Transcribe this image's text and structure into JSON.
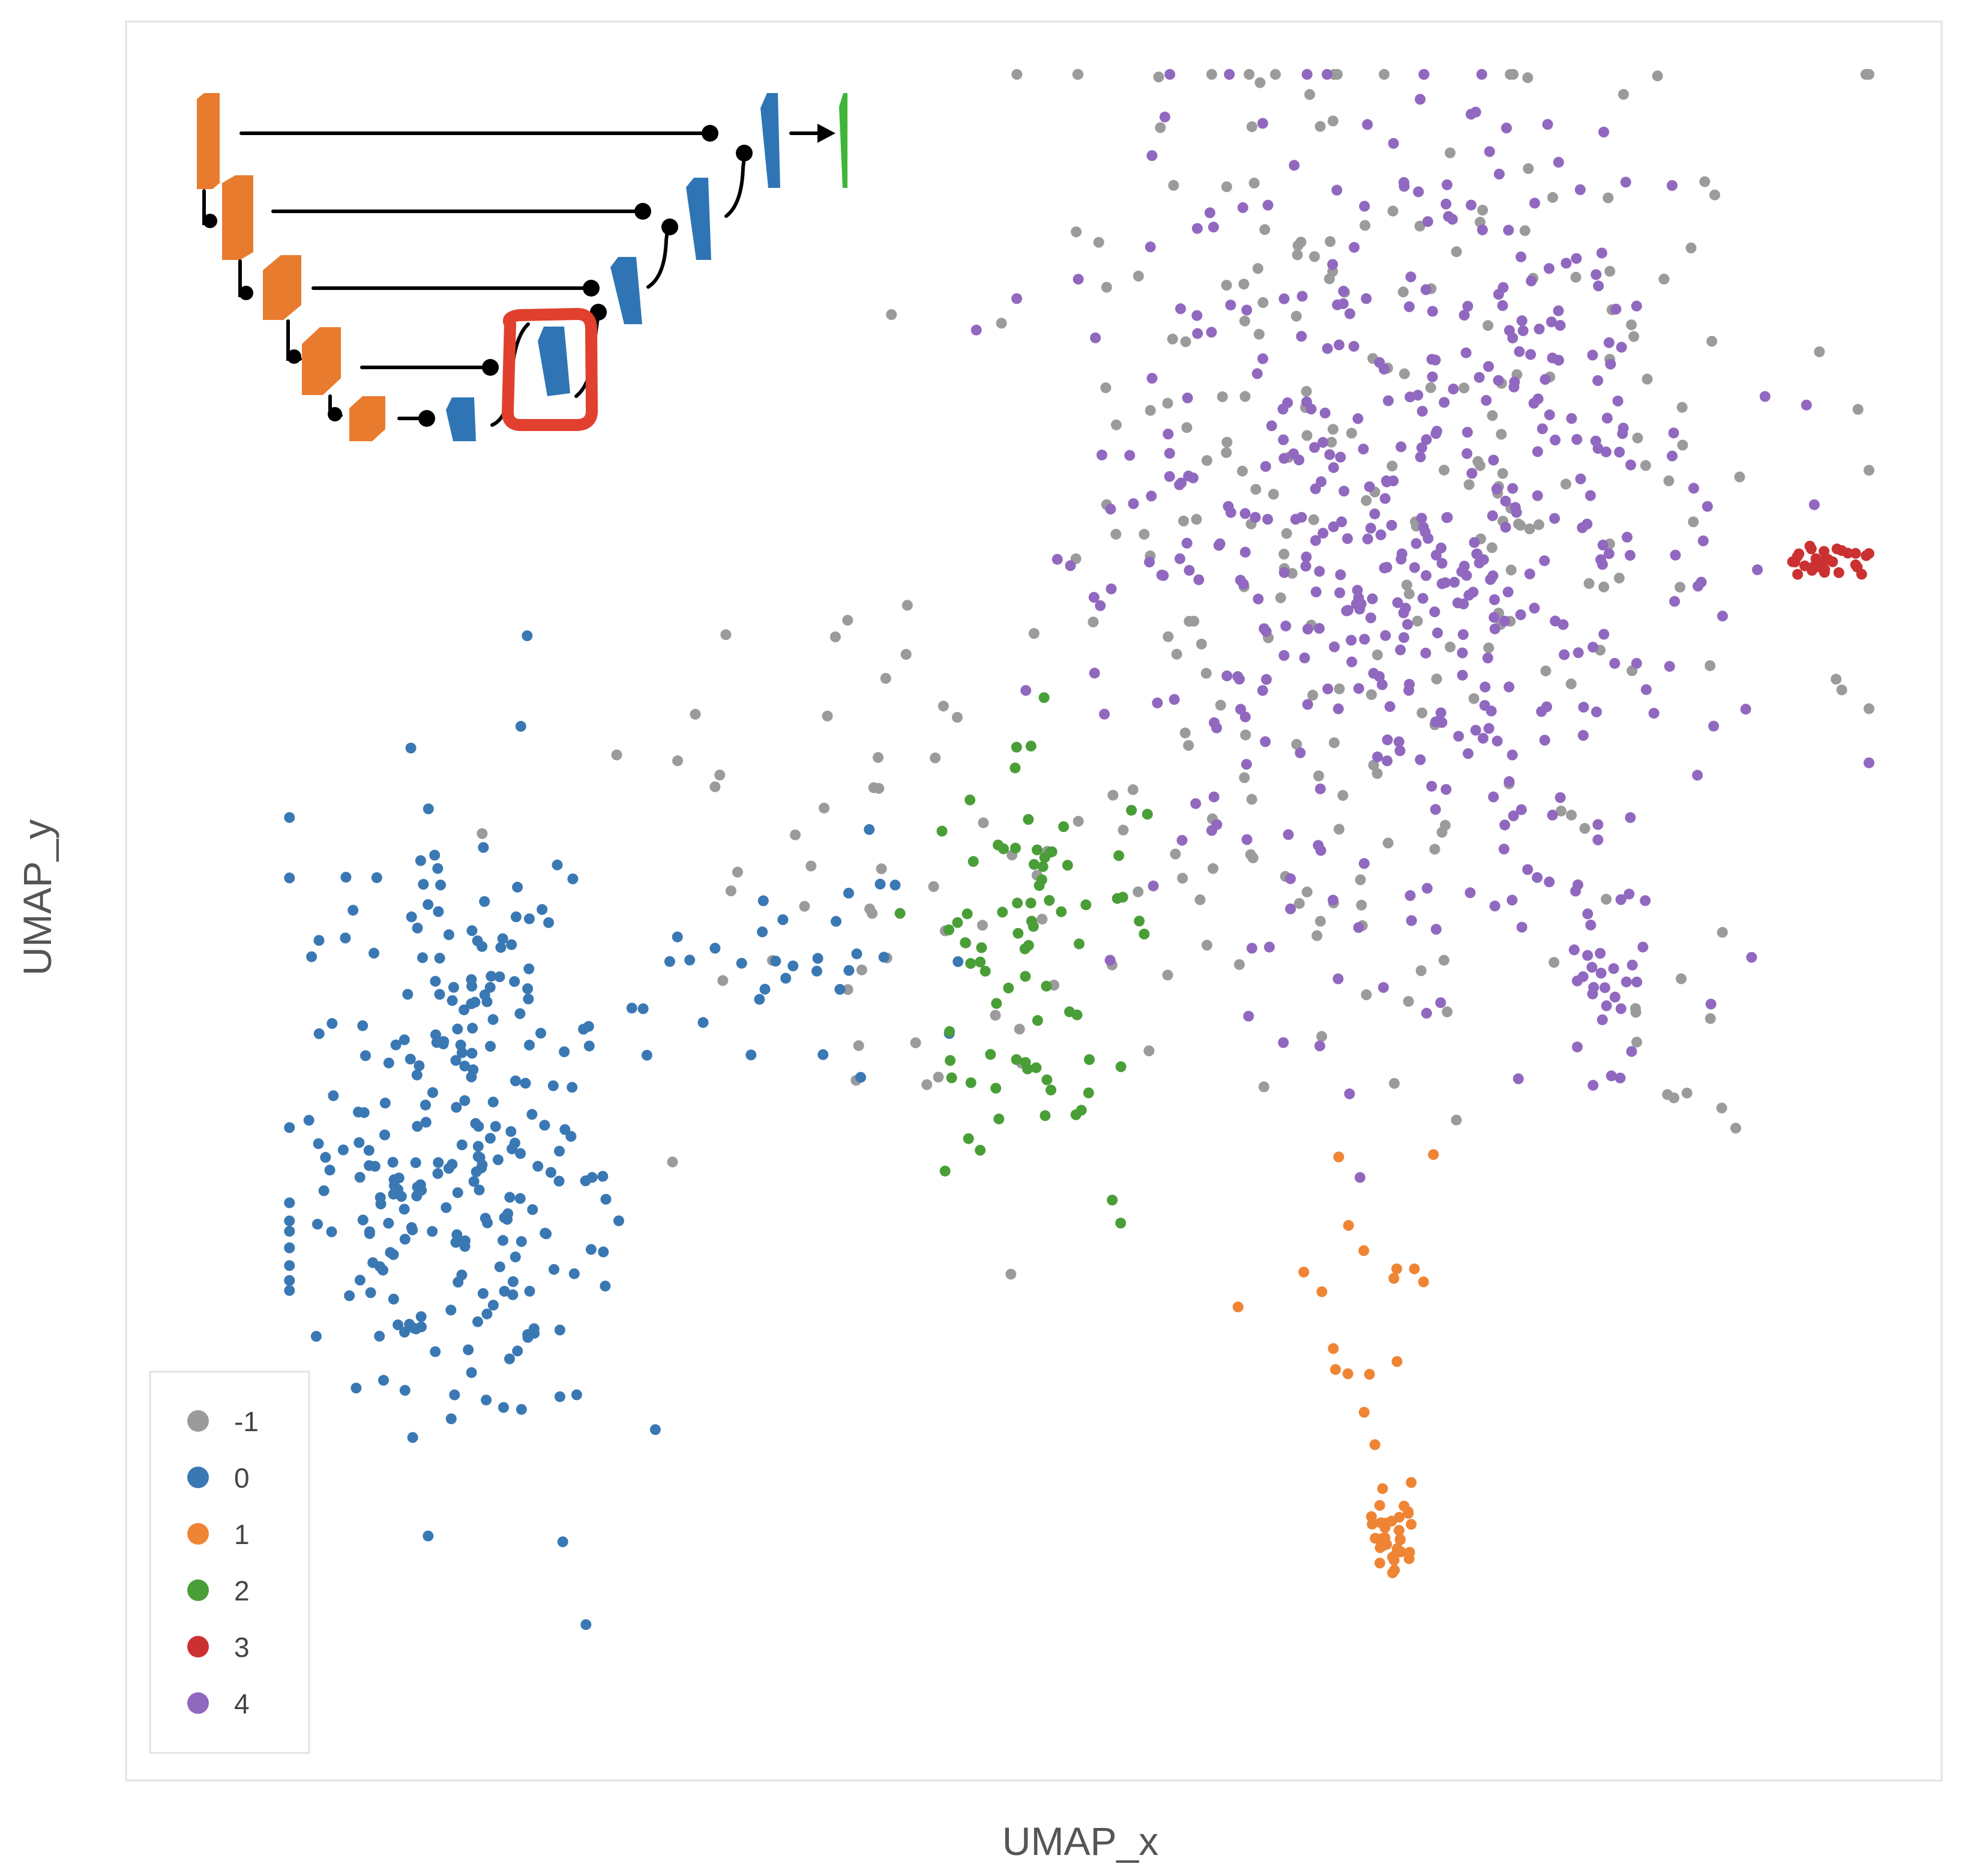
{
  "chart_data": {
    "type": "scatter",
    "xlabel": "UMAP_x",
    "ylabel": "UMAP_y",
    "xlim": [
      0,
      10
    ],
    "ylim": [
      0,
      10
    ],
    "grid": false,
    "legend": {
      "placement": "bottom-left",
      "entries": [
        {
          "label": "-1",
          "color": "#9b9b9b"
        },
        {
          "label": "0",
          "color": "#3a78b4"
        },
        {
          "label": "1",
          "color": "#ef8534"
        },
        {
          "label": "2",
          "color": "#4a9e38"
        },
        {
          "label": "3",
          "color": "#cc3131"
        },
        {
          "label": "4",
          "color": "#9168bf"
        }
      ]
    },
    "series": [
      {
        "name": "-1",
        "color": "#9b9b9b",
        "clusters": [
          {
            "cx": 6.9,
            "cy": 7.6,
            "sx": 1.45,
            "sy": 1.75,
            "n": 230,
            "seed": 11
          },
          {
            "cx": 4.3,
            "cy": 5.1,
            "sx": 1.1,
            "sy": 0.9,
            "n": 50,
            "seed": 12
          },
          {
            "cx": 6.6,
            "cy": 4.9,
            "sx": 0.6,
            "sy": 0.6,
            "n": 30,
            "seed": 13
          },
          {
            "cx": 8.7,
            "cy": 4.2,
            "sx": 0.3,
            "sy": 0.45,
            "n": 10,
            "seed": 14
          }
        ]
      },
      {
        "name": "0",
        "color": "#3a78b4",
        "clusters": [
          {
            "cx": 1.85,
            "cy": 3.6,
            "sx": 0.6,
            "sy": 1.1,
            "n": 270,
            "seed": 21
          },
          {
            "cx": 3.6,
            "cy": 4.6,
            "sx": 0.55,
            "sy": 0.4,
            "n": 30,
            "seed": 22
          }
        ]
      },
      {
        "name": "1",
        "color": "#ef8534",
        "clusters": [
          {
            "cx": 6.95,
            "cy": 1.4,
            "sx": 0.1,
            "sy": 0.15,
            "n": 35,
            "seed": 31
          },
          {
            "cx": 6.9,
            "cy": 2.7,
            "sx": 0.35,
            "sy": 0.55,
            "n": 18,
            "seed": 32
          }
        ]
      },
      {
        "name": "2",
        "color": "#4a9e38",
        "clusters": [
          {
            "cx": 5.05,
            "cy": 4.7,
            "sx": 0.42,
            "sy": 0.75,
            "n": 80,
            "seed": 41
          }
        ]
      },
      {
        "name": "3",
        "color": "#cc3131",
        "clusters": [
          {
            "cx": 9.35,
            "cy": 6.94,
            "sx": 0.17,
            "sy": 0.07,
            "n": 28,
            "seed": 51
          }
        ]
      },
      {
        "name": "4",
        "color": "#9168bf",
        "clusters": [
          {
            "cx": 7.1,
            "cy": 7.1,
            "sx": 1.05,
            "sy": 1.55,
            "n": 470,
            "seed": 61
          },
          {
            "cx": 8.15,
            "cy": 4.6,
            "sx": 0.12,
            "sy": 0.35,
            "n": 28,
            "seed": 62
          }
        ]
      }
    ]
  },
  "inset": {
    "encoder_color": "#e87b2d",
    "decoder_color": "#2f75b5",
    "output_color": "#3fb53a",
    "highlight_color": "#e0402d"
  }
}
